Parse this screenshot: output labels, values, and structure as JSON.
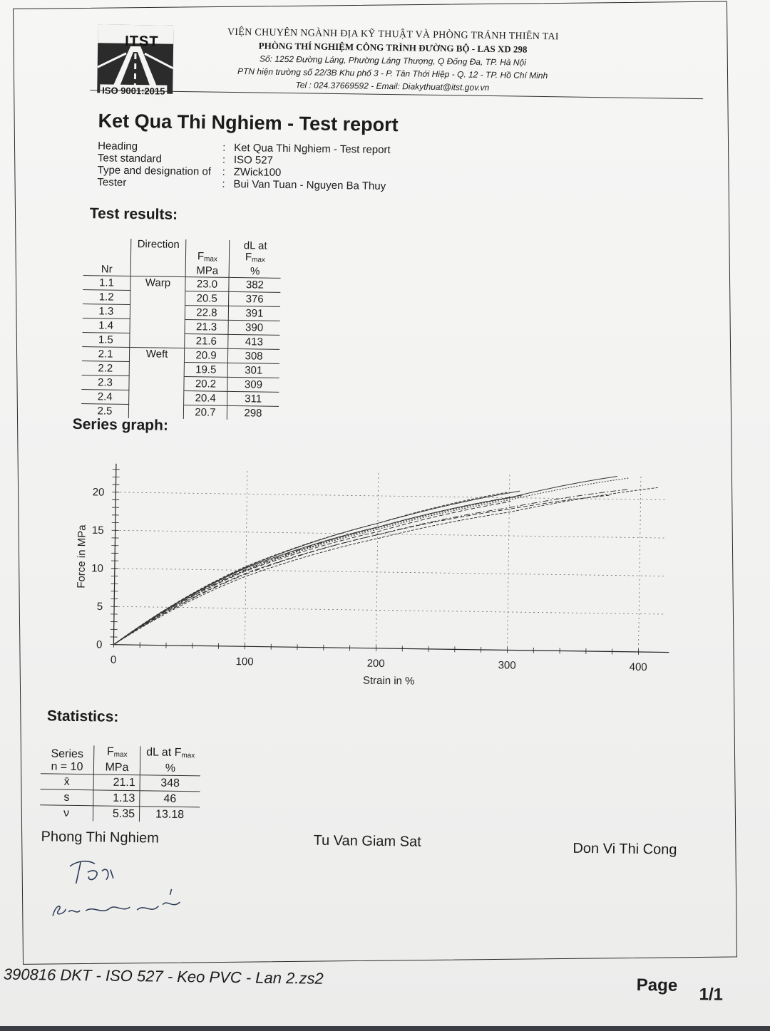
{
  "header": {
    "logo_text": "ITST",
    "logo_iso": "ISO 9001:2015",
    "org_line1": "VIỆN CHUYÊN NGÀNH ĐỊA KỸ THUẬT VÀ PHÒNG TRÁNH THIÊN TAI",
    "org_line2": "PHÒNG THÍ NGHIỆM CÔNG TRÌNH ĐƯỜNG BỘ - LAS XD 298",
    "org_line3": "Số: 1252 Đường Láng, Phường Láng Thượng, Q Đống Đa, TP. Hà Nội",
    "org_line4": "PTN hiện trường số 22/3B Khu phố 3 - P. Tân Thới Hiệp - Q. 12 - TP. Hồ Chí Minh",
    "org_line5": "Tel : 024.37669592 - Email: Diakythuat@itst.gov.vn"
  },
  "title": "Ket Qua Thi Nghiem - Test report",
  "info": [
    {
      "key": "Heading",
      "value": "Ket Qua Thi Nghiem - Test report"
    },
    {
      "key": "Test standard",
      "value": "ISO 527"
    },
    {
      "key": "Type and designation of",
      "value": "ZWick100"
    },
    {
      "key": "Tester",
      "value": "Bui Van Tuan - Nguyen Ba Thuy"
    }
  ],
  "results": {
    "section_title": "Test results:",
    "col_nr": "Nr",
    "col_direction": "Direction",
    "col_fmax_main": "F",
    "col_fmax_sub": "max",
    "col_fmax_unit": "MPa",
    "col_dl_main": "dL at F",
    "col_dl_sub": "max",
    "col_dl_unit": "%",
    "rows": [
      {
        "nr": "1.1",
        "direction": "Warp",
        "fmax": "23.0",
        "dl": "382"
      },
      {
        "nr": "1.2",
        "direction": "",
        "fmax": "20.5",
        "dl": "376"
      },
      {
        "nr": "1.3",
        "direction": "",
        "fmax": "22.8",
        "dl": "391"
      },
      {
        "nr": "1.4",
        "direction": "",
        "fmax": "21.3",
        "dl": "390"
      },
      {
        "nr": "1.5",
        "direction": "",
        "fmax": "21.6",
        "dl": "413"
      },
      {
        "nr": "2.1",
        "direction": "Weft",
        "fmax": "20.9",
        "dl": "308"
      },
      {
        "nr": "2.2",
        "direction": "",
        "fmax": "19.5",
        "dl": "301"
      },
      {
        "nr": "2.3",
        "direction": "",
        "fmax": "20.2",
        "dl": "309"
      },
      {
        "nr": "2.4",
        "direction": "",
        "fmax": "20.4",
        "dl": "311"
      },
      {
        "nr": "2.5",
        "direction": "",
        "fmax": "20.7",
        "dl": "298"
      }
    ]
  },
  "graph": {
    "section_title": "Series graph:"
  },
  "chart_data": {
    "type": "line",
    "xlabel": "Strain in %",
    "ylabel": "Force in MPa",
    "xlim": [
      0,
      420
    ],
    "ylim": [
      0,
      23
    ],
    "x_ticks": [
      0,
      100,
      200,
      300,
      400
    ],
    "y_ticks": [
      0,
      5,
      10,
      15,
      20
    ],
    "grid": true,
    "series": [
      {
        "x": [
          0,
          100,
          200,
          300,
          382
        ],
        "y": [
          0,
          10.3,
          15.9,
          20.0,
          23.0
        ]
      },
      {
        "x": [
          0,
          100,
          200,
          300,
          376
        ],
        "y": [
          0,
          9.6,
          14.9,
          18.5,
          20.5
        ]
      },
      {
        "x": [
          0,
          100,
          200,
          300,
          391
        ],
        "y": [
          0,
          10.0,
          15.6,
          19.7,
          22.8
        ]
      },
      {
        "x": [
          0,
          100,
          200,
          300,
          390
        ],
        "y": [
          0,
          9.5,
          14.9,
          18.7,
          21.3
        ]
      },
      {
        "x": [
          0,
          100,
          200,
          300,
          413
        ],
        "y": [
          0,
          9.2,
          14.4,
          18.1,
          21.6
        ]
      },
      {
        "x": [
          0,
          100,
          200,
          308
        ],
        "y": [
          0,
          10.4,
          16.4,
          20.9
        ]
      },
      {
        "x": [
          0,
          100,
          200,
          301
        ],
        "y": [
          0,
          9.9,
          15.3,
          19.5
        ]
      },
      {
        "x": [
          0,
          100,
          200,
          309
        ],
        "y": [
          0,
          10.0,
          15.8,
          20.2
        ]
      },
      {
        "x": [
          0,
          100,
          200,
          311
        ],
        "y": [
          0,
          10.1,
          15.9,
          20.4
        ]
      },
      {
        "x": [
          0,
          100,
          200,
          298
        ],
        "y": [
          0,
          10.5,
          16.4,
          20.7
        ]
      }
    ]
  },
  "stats": {
    "section_title": "Statistics:",
    "col_series": "Series",
    "col_n": "n = 10",
    "col_fmax_main": "F",
    "col_fmax_sub": "max",
    "col_fmax_unit": "MPa",
    "col_dl_main": "dL at F",
    "col_dl_sub": "max",
    "col_dl_unit": "%",
    "rows": [
      {
        "label": "x̄",
        "fmax": "21.1",
        "dl": "348"
      },
      {
        "label": "s",
        "fmax": "1.13",
        "dl": "46"
      },
      {
        "label": "ν",
        "fmax": "5.35",
        "dl": "13.18"
      }
    ]
  },
  "signatures": {
    "lab": "Phong Thi Nghiem",
    "supervisor": "Tu Van Giam Sat",
    "contractor": "Don Vi Thi Cong",
    "handwritten_initial": "Tph",
    "handwritten_name": "Bùi xuân phước"
  },
  "footer": {
    "file": "390816 DKT - ISO 527 - Keo PVC - Lan 2.zs2",
    "page_label": "Page",
    "page_num": "1/1"
  }
}
